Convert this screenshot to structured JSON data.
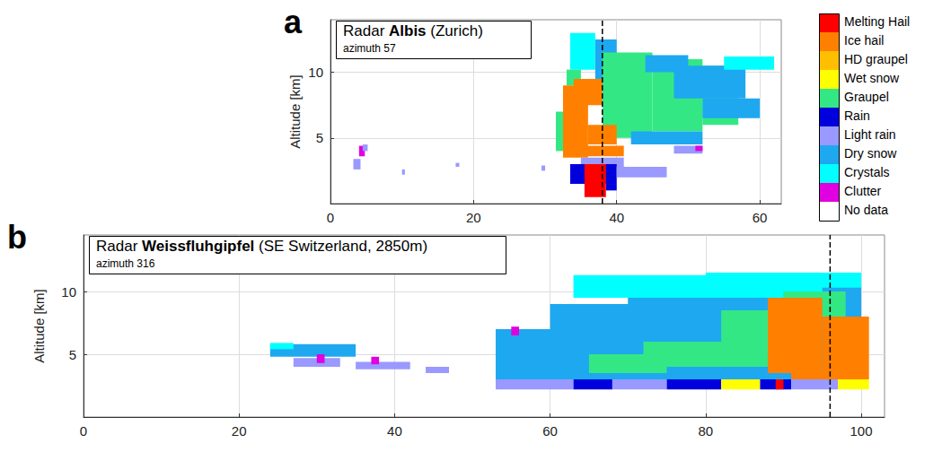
{
  "chart_data": [
    {
      "type": "cross_section",
      "panel": "a",
      "title_runs": [
        {
          "text": "Radar "
        },
        {
          "text": "Albis",
          "bold": true
        },
        {
          "text": " (Zurich)"
        }
      ],
      "subtitle": "azimuth 57",
      "y_label": "Altitude [km]",
      "xlim": [
        0,
        63
      ],
      "xticks": [
        0,
        20,
        40,
        60
      ],
      "ylim": [
        0,
        14
      ],
      "yticks": [
        5,
        10
      ],
      "grid": true,
      "marker_x": 38,
      "cells": [
        [
          3.2,
          4.2,
          2.6,
          3.4,
          "Light rain"
        ],
        [
          4.0,
          4.8,
          3.6,
          4.4,
          "Clutter"
        ],
        [
          4.5,
          5.2,
          4.0,
          4.5,
          "Light rain"
        ],
        [
          10.0,
          10.4,
          2.2,
          2.6,
          "Light rain"
        ],
        [
          17.5,
          18.0,
          2.8,
          3.1,
          "Light rain"
        ],
        [
          29.5,
          30.0,
          2.5,
          2.9,
          "Light rain"
        ],
        [
          33.5,
          37.0,
          10.2,
          13.0,
          "Crystals"
        ],
        [
          37.0,
          40.0,
          9.0,
          12.5,
          "Dry snow"
        ],
        [
          38.0,
          41.0,
          9.5,
          11.0,
          "Crystals"
        ],
        [
          38.0,
          45.0,
          5.0,
          11.5,
          "Graupel"
        ],
        [
          45.0,
          52.0,
          5.5,
          11.0,
          "Graupel"
        ],
        [
          52.0,
          57.0,
          6.0,
          10.5,
          "Graupel"
        ],
        [
          44.0,
          50.0,
          10.0,
          11.3,
          "Dry snow"
        ],
        [
          48.0,
          58.0,
          8.0,
          10.5,
          "Dry snow"
        ],
        [
          52.0,
          60.0,
          6.5,
          8.0,
          "Dry snow"
        ],
        [
          55.0,
          62.0,
          10.2,
          11.2,
          "Crystals"
        ],
        [
          42.0,
          52.0,
          4.5,
          5.5,
          "Dry snow"
        ],
        [
          48.0,
          52.0,
          3.8,
          4.4,
          "Light rain"
        ],
        [
          51.0,
          52.0,
          4.0,
          4.4,
          "Clutter"
        ],
        [
          33.0,
          35.0,
          9.0,
          10.2,
          "Graupel"
        ],
        [
          31.5,
          33.0,
          4.0,
          7.0,
          "Graupel"
        ],
        [
          32.5,
          36.0,
          3.5,
          9.0,
          "Ice hail"
        ],
        [
          34.0,
          38.0,
          7.5,
          9.5,
          "Ice hail"
        ],
        [
          36.0,
          40.0,
          4.5,
          6.0,
          "Ice hail"
        ],
        [
          35.0,
          41.0,
          3.6,
          4.4,
          "Ice hail"
        ],
        [
          35.0,
          41.0,
          2.8,
          3.5,
          "Light rain"
        ],
        [
          33.5,
          40.0,
          1.5,
          3.0,
          "Rain"
        ],
        [
          40.0,
          47.0,
          2.0,
          2.8,
          "Light rain"
        ],
        [
          38.5,
          40.0,
          1.0,
          1.5,
          "Rain"
        ],
        [
          35.5,
          38.5,
          0.5,
          3.0,
          "Melting Hail"
        ]
      ]
    },
    {
      "type": "cross_section",
      "panel": "b",
      "title_runs": [
        {
          "text": "Radar "
        },
        {
          "text": "Weissfluhgipfel",
          "bold": true
        },
        {
          "text": " (SE Switzerland, 2850m)"
        }
      ],
      "subtitle": "azimuth 316",
      "y_label": "Altitude [km]",
      "xlim": [
        0,
        103
      ],
      "xticks": [
        0,
        20,
        40,
        60,
        80,
        100
      ],
      "ylim": [
        0,
        14.5
      ],
      "yticks": [
        5,
        10
      ],
      "grid": true,
      "marker_x": 96,
      "cells": [
        [
          24,
          35,
          4.8,
          5.8,
          "Dry snow"
        ],
        [
          24,
          27,
          5.4,
          5.9,
          "Crystals"
        ],
        [
          27,
          33,
          4.0,
          4.7,
          "Light rain"
        ],
        [
          30,
          31,
          4.3,
          5.0,
          "Clutter"
        ],
        [
          35,
          42,
          3.8,
          4.4,
          "Light rain"
        ],
        [
          44,
          47,
          3.5,
          4.0,
          "Light rain"
        ],
        [
          37,
          38,
          4.2,
          4.8,
          "Clutter"
        ],
        [
          53,
          100,
          3.0,
          7.0,
          "Dry snow"
        ],
        [
          60,
          100,
          7.0,
          9.0,
          "Dry snow"
        ],
        [
          70,
          100,
          9.0,
          10.5,
          "Dry snow"
        ],
        [
          63,
          95,
          9.5,
          11.3,
          "Crystals"
        ],
        [
          80,
          100,
          10.3,
          11.5,
          "Crystals"
        ],
        [
          65,
          75,
          3.5,
          5.0,
          "Graupel"
        ],
        [
          72,
          88,
          4.0,
          6.0,
          "Graupel"
        ],
        [
          82,
          92,
          5.0,
          8.5,
          "Graupel"
        ],
        [
          90,
          98,
          8.0,
          10.0,
          "Graupel"
        ],
        [
          55,
          56,
          6.5,
          7.2,
          "Clutter"
        ],
        [
          88,
          95,
          3.5,
          9.5,
          "Ice hail"
        ],
        [
          95,
          101,
          3.0,
          8.0,
          "Ice hail"
        ],
        [
          91,
          96,
          3.0,
          3.6,
          "Ice hail"
        ],
        [
          53,
          63,
          2.2,
          3.0,
          "Light rain"
        ],
        [
          63,
          68,
          2.2,
          3.0,
          "Rain"
        ],
        [
          68,
          75,
          2.2,
          3.0,
          "Light rain"
        ],
        [
          75,
          82,
          2.2,
          3.0,
          "Rain"
        ],
        [
          82,
          87,
          2.2,
          3.0,
          "Wet snow"
        ],
        [
          87,
          91,
          2.2,
          3.0,
          "Rain"
        ],
        [
          89,
          90,
          2.2,
          3.0,
          "Melting Hail"
        ],
        [
          91,
          97,
          2.2,
          3.0,
          "Light rain"
        ],
        [
          97,
          101,
          2.2,
          3.0,
          "Wet snow"
        ]
      ]
    }
  ],
  "color_key": [
    {
      "name": "Melting Hail",
      "color": "#ff0000"
    },
    {
      "name": "Ice hail",
      "color": "#ff8000"
    },
    {
      "name": "HD graupel",
      "color": "#ffbf00"
    },
    {
      "name": "Wet snow",
      "color": "#ffff00"
    },
    {
      "name": "Graupel",
      "color": "#33e884"
    },
    {
      "name": "Rain",
      "color": "#0000dd"
    },
    {
      "name": "Light rain",
      "color": "#9999ff"
    },
    {
      "name": "Dry snow",
      "color": "#1ea8f0"
    },
    {
      "name": "Crystals",
      "color": "#00ffff"
    },
    {
      "name": "Clutter",
      "color": "#e000e0"
    },
    {
      "name": "No data",
      "color": "#ffffff"
    }
  ]
}
